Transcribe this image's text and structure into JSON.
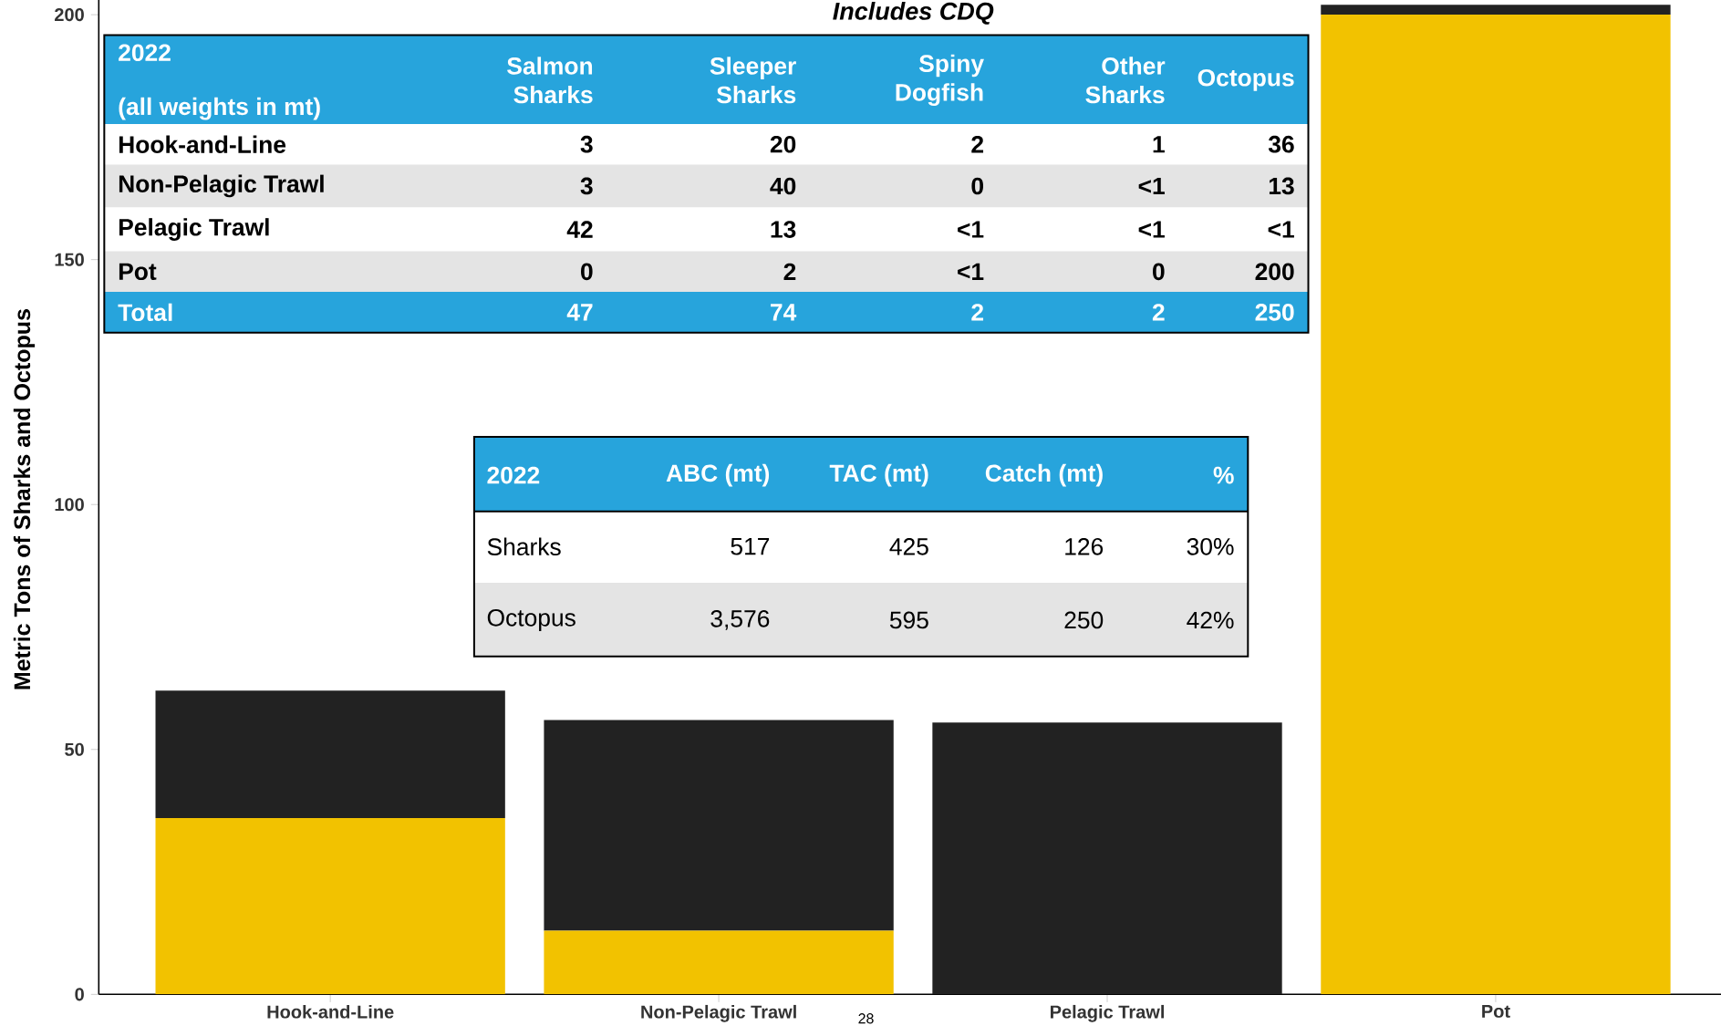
{
  "chart_data": {
    "type": "bar",
    "stacked": true,
    "title": "Includes CDQ",
    "ylabel": "Metric Tons of Sharks and Octopus",
    "categories": [
      "Hook-and-Line",
      "Non-Pelagic Trawl",
      "Pelagic Trawl",
      "Pot"
    ],
    "series": [
      {
        "color": "#f2c200",
        "values": [
          36,
          13,
          0,
          200
        ]
      },
      {
        "color": "#222222",
        "values": [
          26,
          43,
          55.5,
          2
        ]
      }
    ],
    "ylim": [
      0,
      203
    ],
    "yticks": [
      0,
      50,
      100,
      150,
      200
    ],
    "annotations": [
      "2022",
      "(all weights in mt)",
      "Salmon Sharks",
      "Sleeper Sharks",
      "Spiny Dogfish",
      "Other Sharks",
      "Octopus",
      "Hook-and-Line",
      "3",
      "20",
      "2",
      "1",
      "36",
      "Non-Pelagic Trawl",
      "3",
      "40",
      "0",
      "<1",
      "13",
      "Pelagic Trawl",
      "42",
      "13",
      "<1",
      "<1",
      "<1",
      "Pot",
      "0",
      "2",
      "<1",
      "0",
      "200",
      "Total",
      "47",
      "74",
      "2",
      "2",
      "250",
      "2022",
      "ABC (mt)",
      "TAC (mt)",
      "Catch (mt)",
      "%",
      "Sharks",
      "517",
      "425",
      "126",
      "30%",
      "Octopus",
      "3,576",
      "595",
      "250",
      "42%",
      "28"
    ]
  }
}
